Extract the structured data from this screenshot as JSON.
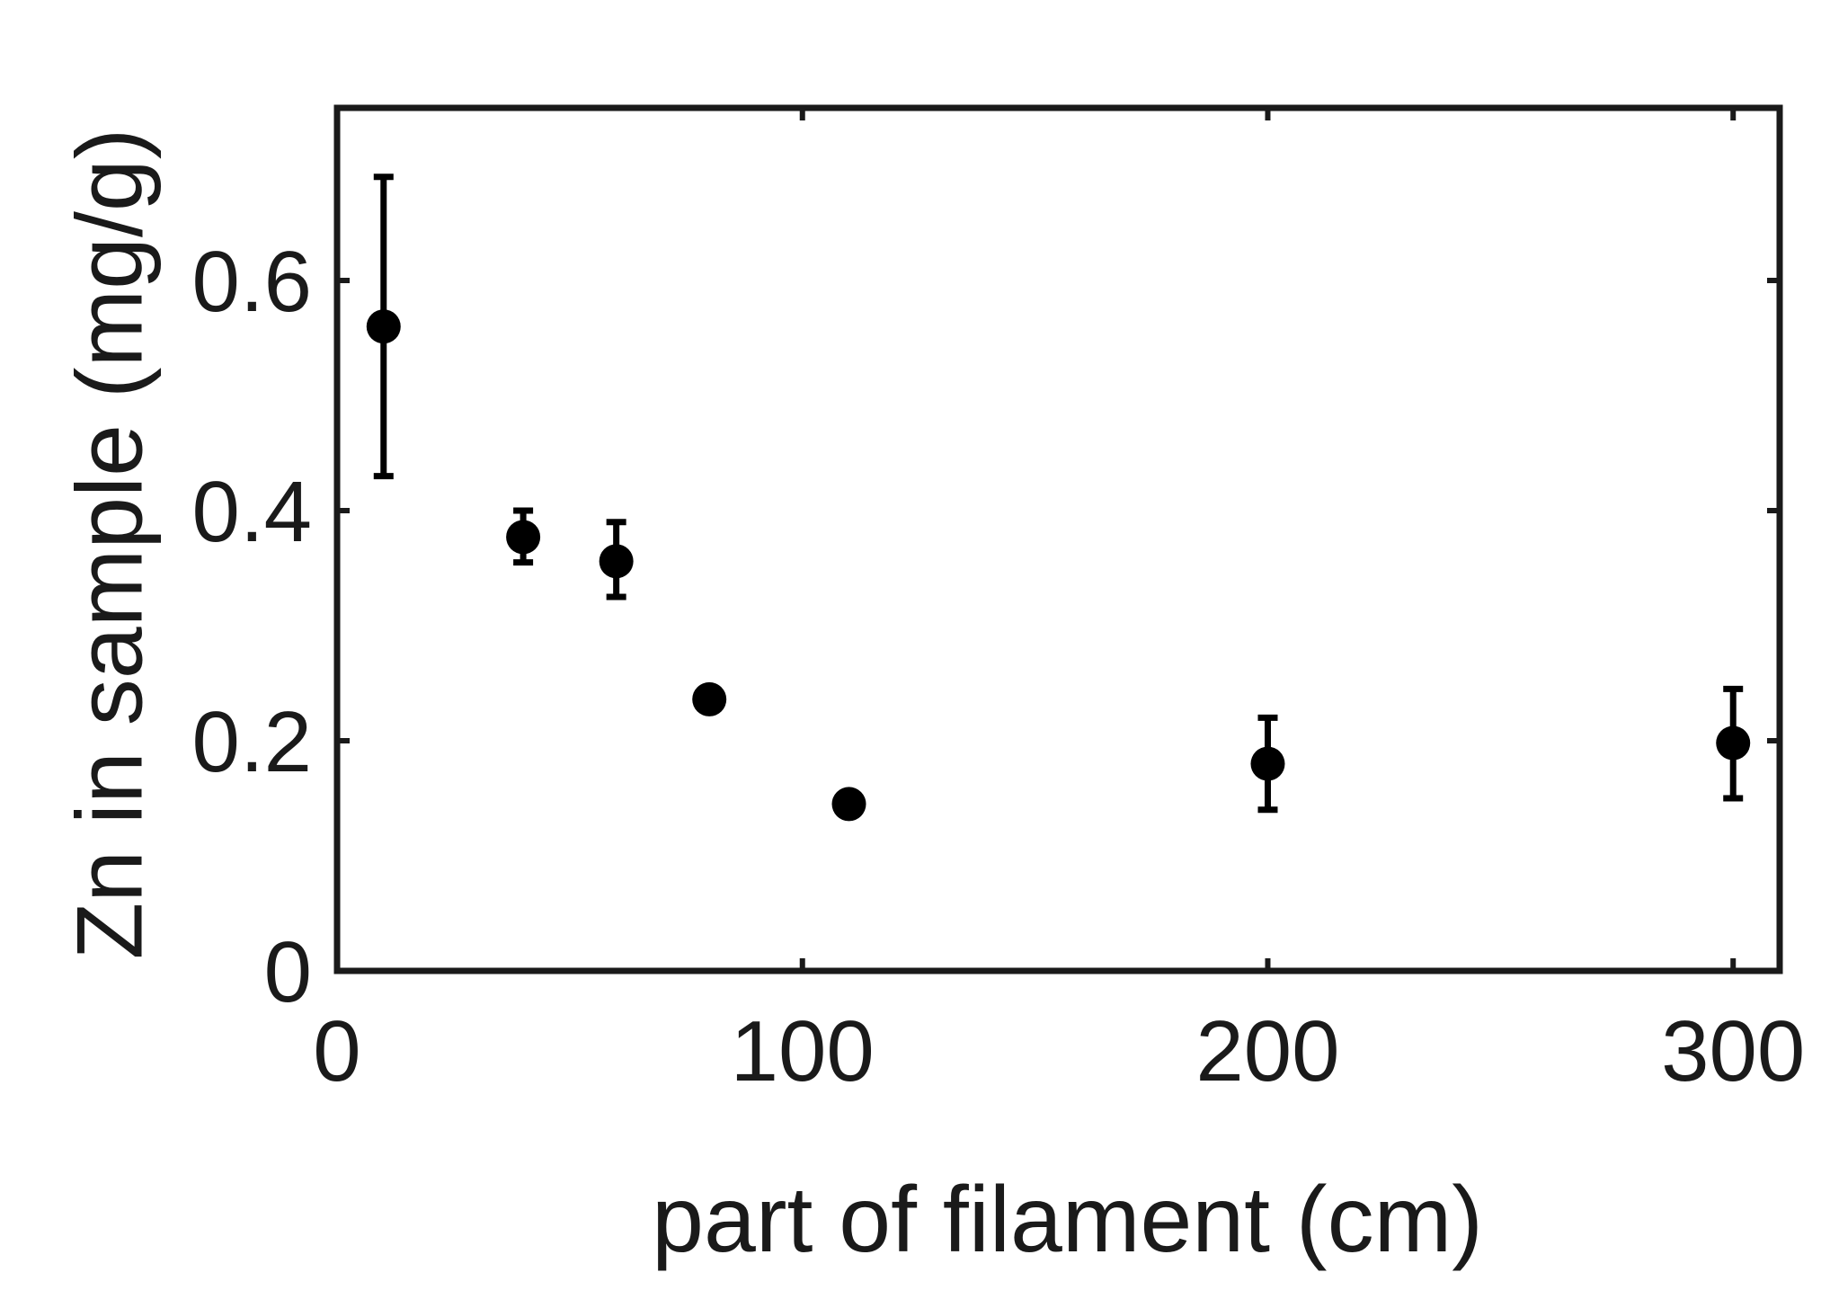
{
  "chart_data": {
    "type": "scatter",
    "title": "",
    "xlabel": "part of filament (cm)",
    "ylabel": "Zn in sample (mg/g)",
    "xlim": [
      0,
      310
    ],
    "ylim": [
      0,
      0.75
    ],
    "x_ticks": [
      0,
      100,
      200,
      300
    ],
    "y_ticks": [
      0,
      0.2,
      0.4,
      0.6
    ],
    "x_tick_labels": [
      "0",
      "100",
      "200",
      "300"
    ],
    "y_tick_labels": [
      "0",
      "0.2",
      "0.4",
      "0.6"
    ],
    "grid": false,
    "legend": "none",
    "marker_color": "#000000",
    "points": [
      {
        "x": 10,
        "y": 0.56,
        "err_low": 0.43,
        "err_high": 0.69
      },
      {
        "x": 40,
        "y": 0.377,
        "err_low": 0.355,
        "err_high": 0.4
      },
      {
        "x": 60,
        "y": 0.356,
        "err_low": 0.325,
        "err_high": 0.39
      },
      {
        "x": 80,
        "y": 0.236,
        "err_low": 0.236,
        "err_high": 0.236
      },
      {
        "x": 110,
        "y": 0.145,
        "err_low": 0.145,
        "err_high": 0.145
      },
      {
        "x": 200,
        "y": 0.18,
        "err_low": 0.14,
        "err_high": 0.22
      },
      {
        "x": 300,
        "y": 0.198,
        "err_low": 0.15,
        "err_high": 0.245
      }
    ]
  }
}
